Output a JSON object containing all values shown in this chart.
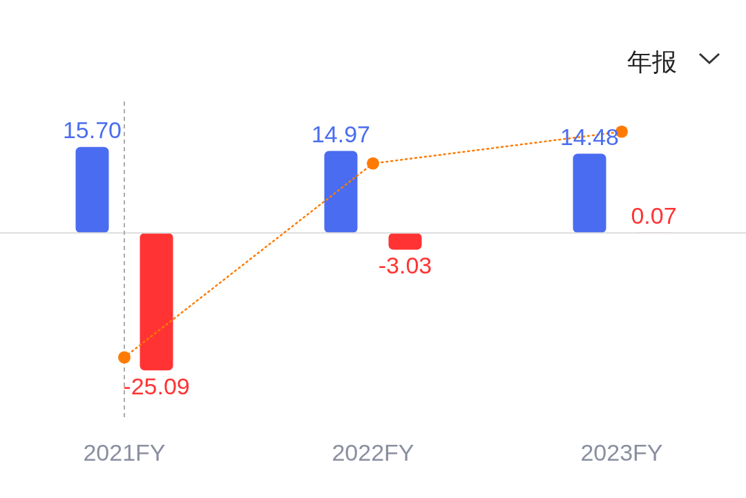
{
  "chart_data": {
    "type": "bar",
    "categories": [
      "2021FY",
      "2022FY",
      "2023FY"
    ],
    "series": [
      {
        "color": "#4a6cf0",
        "values": [
          15.7,
          14.97,
          14.48
        ],
        "value_labels": [
          "15.70",
          "14.97",
          "14.48"
        ]
      },
      {
        "color": "#ff3333",
        "values": [
          -25.09,
          -3.03,
          0.07
        ],
        "value_labels": [
          "-25.09",
          "-3.03",
          "0.07"
        ]
      },
      {
        "type": "line",
        "color": "#ff7a00",
        "values": [
          -22.7,
          12.7,
          18.5
        ]
      }
    ],
    "ylim": [
      -34,
      24
    ],
    "tick_labels": "x",
    "grid": false,
    "legend": false,
    "marker": "circle",
    "line_style": "dotted",
    "ref_lines": [
      {
        "axis": "y",
        "value": 0,
        "color": "#dddddd",
        "line_style": "solid"
      },
      {
        "axis": "x",
        "value": "2021FY",
        "color": "#aaaaaa",
        "line_style": "dashed"
      }
    ],
    "annotations": [
      "年报"
    ]
  }
}
